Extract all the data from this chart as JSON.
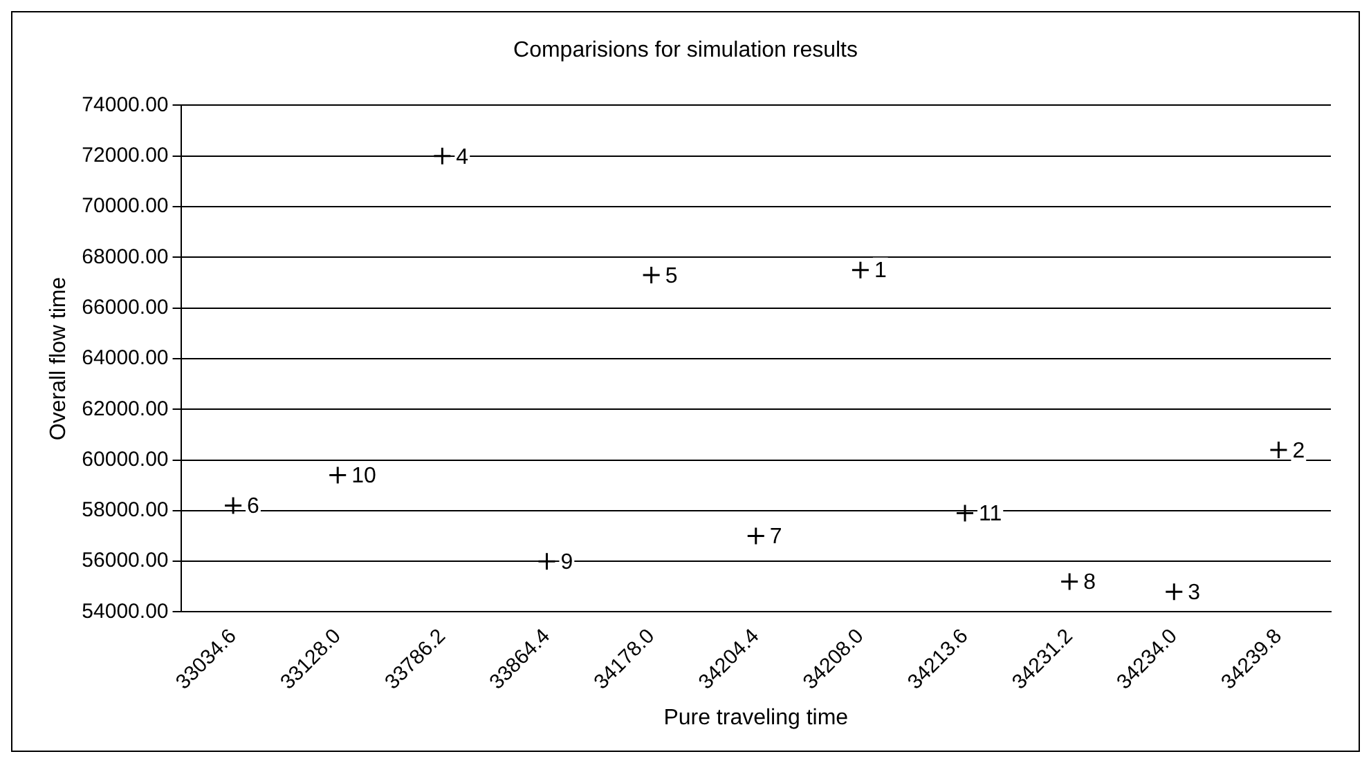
{
  "chart_data": {
    "type": "scatter",
    "title": "Comparisions for simulation results",
    "xlabel": "Pure traveling time",
    "ylabel": "Overall flow time",
    "categories": [
      "33034.6",
      "33128.0",
      "33786.2",
      "33864.4",
      "34178.0",
      "34204.4",
      "34208.0",
      "34213.6",
      "34231.2",
      "34234.0",
      "34239.8"
    ],
    "values": [
      58200,
      59400,
      72000,
      56000,
      67300,
      57000,
      67500,
      57900,
      55200,
      54800,
      60400
    ],
    "annotations": [
      {
        "text": "6",
        "x": "33034.6",
        "y": 58200
      },
      {
        "text": "10",
        "x": "33128.0",
        "y": 59400
      },
      {
        "text": "4",
        "x": "33786.2",
        "y": 72000
      },
      {
        "text": "9",
        "x": "33864.4",
        "y": 56000
      },
      {
        "text": "5",
        "x": "34178.0",
        "y": 67300
      },
      {
        "text": "7",
        "x": "34204.4",
        "y": 57000
      },
      {
        "text": "1",
        "x": "34208.0",
        "y": 67500
      },
      {
        "text": "11",
        "x": "34213.6",
        "y": 57900
      },
      {
        "text": "8",
        "x": "34231.2",
        "y": 55200
      },
      {
        "text": "3",
        "x": "34234.0",
        "y": 54800
      },
      {
        "text": "2",
        "x": "34239.8",
        "y": 60400
      }
    ],
    "color": "#000000",
    "marker": "cross",
    "grid": "y",
    "legend": false,
    "ylim": [
      54000,
      74000
    ],
    "yticks": [
      {
        "value": 54000,
        "label": "54000.00"
      },
      {
        "value": 56000,
        "label": "56000.00"
      },
      {
        "value": 58000,
        "label": "58000.00"
      },
      {
        "value": 60000,
        "label": "60000.00"
      },
      {
        "value": 62000,
        "label": "62000.00"
      },
      {
        "value": 64000,
        "label": "64000.00"
      },
      {
        "value": 66000,
        "label": "66000.00"
      },
      {
        "value": 68000,
        "label": "68000.00"
      },
      {
        "value": 70000,
        "label": "70000.00"
      },
      {
        "value": 72000,
        "label": "72000.00"
      },
      {
        "value": 74000,
        "label": "74000.00"
      }
    ]
  }
}
